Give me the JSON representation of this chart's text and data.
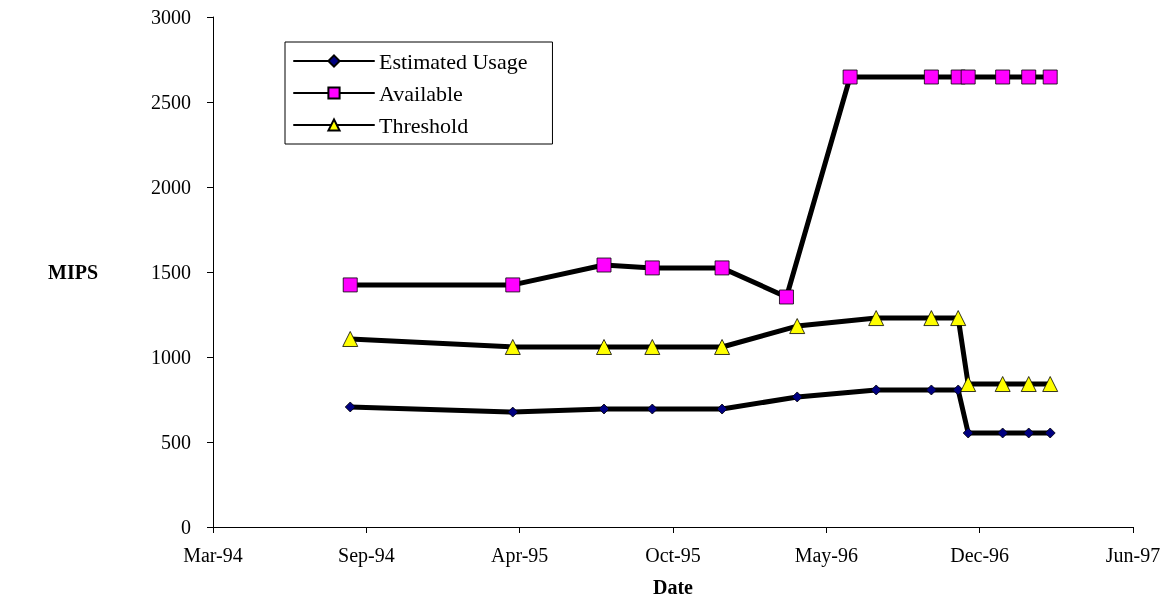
{
  "chart_data": {
    "type": "line",
    "xlabel": "Date",
    "ylabel": "MIPS",
    "xlim": [
      "1994-03-08",
      "1997-06-20"
    ],
    "xticks": [
      {
        "value": "1994-03-08",
        "label": "Mar-94"
      },
      {
        "value": "1994-09-24",
        "label": "Sep-94"
      },
      {
        "value": "1995-04-12",
        "label": "Apr-95"
      },
      {
        "value": "1995-10-29",
        "label": "Oct-95"
      },
      {
        "value": "1996-05-16",
        "label": "May-96"
      },
      {
        "value": "1996-12-02",
        "label": "Dec-96"
      },
      {
        "value": "1997-06-20",
        "label": "Jun-97"
      }
    ],
    "ylim": [
      0,
      3000
    ],
    "yticks": [
      0,
      500,
      1000,
      1500,
      2000,
      2500,
      3000
    ],
    "grid": false,
    "legend": "top left",
    "line_style": "solid",
    "series": [
      {
        "name": "Estimated Usage",
        "color": "#000080",
        "marker": "diamond",
        "x": [
          "1994-09-03",
          "1995-04-03",
          "1995-07-31",
          "1995-10-02",
          "1996-01-01",
          "1996-04-08",
          "1996-07-20",
          "1996-09-30",
          "1996-11-04",
          "1996-11-17",
          "1997-01-01",
          "1997-02-04",
          "1997-03-04"
        ],
        "values": [
          706,
          676,
          694,
          694,
          694,
          765,
          806,
          806,
          806,
          553,
          553,
          553,
          553
        ]
      },
      {
        "name": "Available",
        "color": "#ff00ff",
        "marker": "square",
        "x": [
          "1994-09-03",
          "1995-04-03",
          "1995-07-31",
          "1995-10-02",
          "1996-01-01",
          "1996-03-25",
          "1996-06-16",
          "1996-09-30",
          "1996-11-04",
          "1996-11-17",
          "1997-01-01",
          "1997-02-04",
          "1997-03-04"
        ],
        "values": [
          1424,
          1424,
          1541,
          1524,
          1524,
          1353,
          2647,
          2647,
          2647,
          2647,
          2647,
          2647,
          2647
        ]
      },
      {
        "name": "Threshold",
        "color": "#ffff00",
        "marker": "triangle",
        "x": [
          "1994-09-03",
          "1995-04-03",
          "1995-07-31",
          "1995-10-02",
          "1996-01-01",
          "1996-04-08",
          "1996-07-20",
          "1996-09-30",
          "1996-11-04",
          "1996-11-17",
          "1997-01-01",
          "1997-02-04",
          "1997-03-04"
        ],
        "values": [
          1106,
          1059,
          1059,
          1059,
          1059,
          1182,
          1229,
          1229,
          1229,
          841,
          841,
          841,
          841
        ]
      }
    ]
  }
}
